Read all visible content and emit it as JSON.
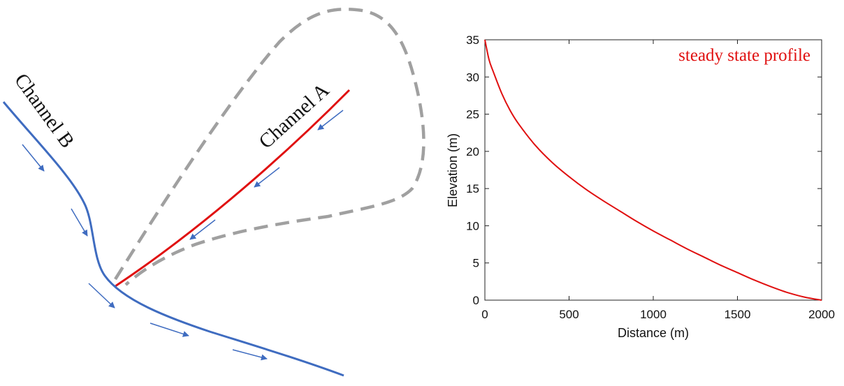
{
  "diagram": {
    "channel_a_label": "Channel A",
    "channel_b_label": "Channel B",
    "colors": {
      "channel_a": "#e01010",
      "channel_b": "#3f6cc0",
      "flow_arrow": "#3f6cc0",
      "drainage_divide": "#a0a0a0"
    },
    "icons": [
      "flow-arrow-icon",
      "confluence-icon"
    ]
  },
  "chart_data": {
    "type": "line",
    "title": "",
    "xlabel": "Distance (m)",
    "ylabel": "Elevation (m)",
    "xlim": [
      0,
      2000
    ],
    "ylim": [
      0,
      35
    ],
    "xticks": [
      0,
      500,
      1000,
      1500,
      2000
    ],
    "yticks": [
      0,
      5,
      10,
      15,
      20,
      25,
      30,
      35
    ],
    "grid": false,
    "annotation": "steady state profile",
    "series": [
      {
        "color": "#e01010",
        "x": [
          0,
          25,
          50,
          100,
          150,
          200,
          300,
          400,
          500,
          600,
          700,
          800,
          900,
          1000,
          1100,
          1200,
          1300,
          1400,
          1500,
          1600,
          1700,
          1800,
          1900,
          2000
        ],
        "y": [
          35,
          32.3,
          30.7,
          27.8,
          25.5,
          23.7,
          20.8,
          18.5,
          16.6,
          14.9,
          13.4,
          12.0,
          10.6,
          9.3,
          8.1,
          6.9,
          5.8,
          4.7,
          3.7,
          2.7,
          1.8,
          1.0,
          0.4,
          0.0
        ]
      }
    ]
  }
}
